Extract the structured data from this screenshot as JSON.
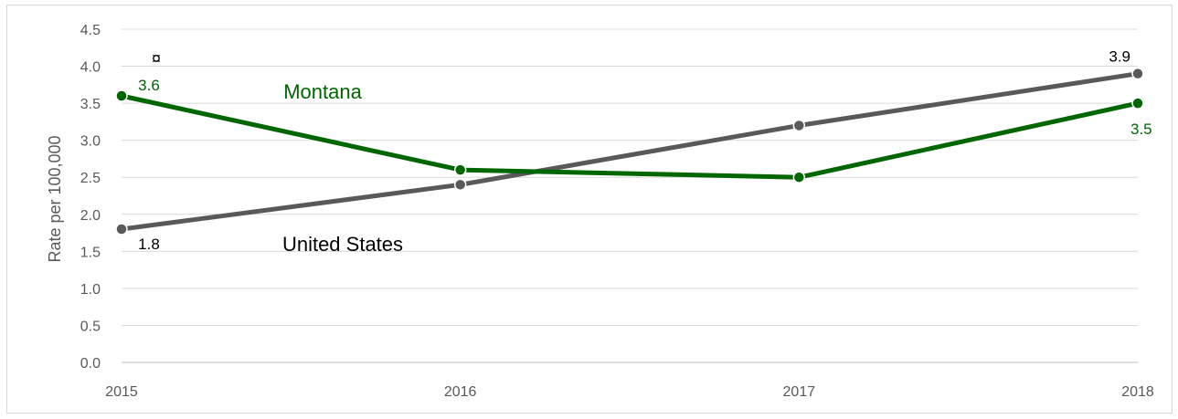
{
  "chart_data": {
    "type": "line",
    "title": "",
    "xlabel": "",
    "ylabel": "Rate per 100,000",
    "x": [
      "2015",
      "2016",
      "2017",
      "2018"
    ],
    "ylim": [
      0,
      4.5
    ],
    "yticks": [
      "0.0",
      "0.5",
      "1.0",
      "1.5",
      "2.0",
      "2.5",
      "3.0",
      "3.5",
      "4.0",
      "4.5"
    ],
    "grid": true,
    "legend": "none",
    "series": [
      {
        "name": "Montana",
        "values": [
          3.6,
          2.6,
          2.5,
          3.5
        ],
        "color": "#006600",
        "data_labels": {
          "0": "3.6",
          "3": "3.5"
        }
      },
      {
        "name": "United States",
        "values": [
          1.8,
          2.4,
          3.2,
          3.9
        ],
        "color": "#595959",
        "data_labels": {
          "0": "1.8",
          "3": "3.9"
        }
      }
    ],
    "annotations": [
      {
        "text": "¤",
        "x": "2015",
        "y": 4.4
      }
    ]
  }
}
